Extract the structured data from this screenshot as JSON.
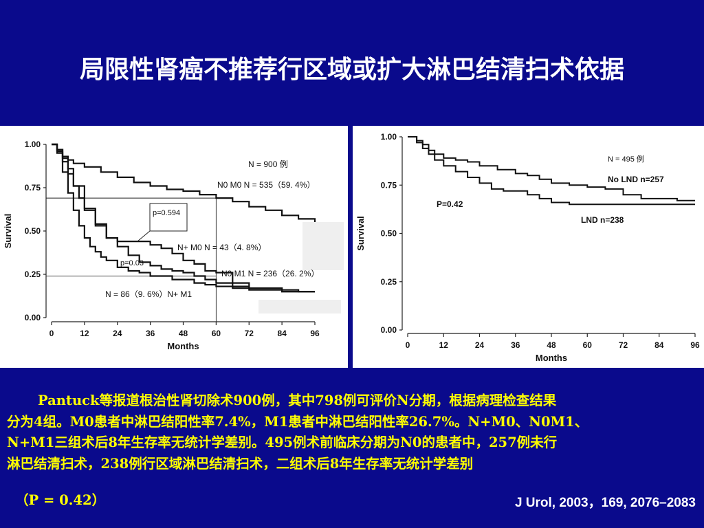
{
  "slide": {
    "title": "局限性肾癌不推荐行区域或扩大淋巴结清扫术依据",
    "paragraph_lines": [
      "Pantuck等报道根治性肾切除术900例，其中798例可评价N分期，根据病理检查结果",
      "分为4组。M0患者中淋巴结阳性率7.4%，M1患者中淋巴结阳性率26.7%。N+M0、N0M1、",
      "N+M1三组术后8年生存率无统计学差别。495例术前临床分期为N0的患者中，257例未行",
      "淋巴结清扫术，238例行区域淋巴结清扫术，二组术后8年生存率无统计学差别"
    ],
    "p_value_note": "（P = 0.42）",
    "citation": "J Urol, 2003，169, 2076–2083",
    "colors": {
      "background": "#0a0a8c",
      "title": "#ffffff",
      "paragraph": "#ffff00",
      "citation": "#ffffff"
    }
  },
  "chart_data": [
    {
      "type": "line",
      "title": "",
      "xlabel": "Months",
      "ylabel": "Survival",
      "xlim": [
        0,
        96
      ],
      "ylim": [
        0,
        1
      ],
      "xticks": [
        "0",
        "12",
        "24",
        "36",
        "48",
        "60",
        "72",
        "84",
        "96"
      ],
      "yticks": [
        "0.00",
        "0.25",
        "0.50",
        "0.75",
        "1.00"
      ],
      "annotations": [
        "N = 900 例",
        "N0 M0  N = 535（59. 4%）",
        "N+ M0 N = 43（4. 8%）",
        "N0 M1  N = 236（26. 2%）",
        "N = 86（9. 6%）N+ M1",
        "p=0.594",
        "p=0.03"
      ],
      "series": [
        {
          "id": "N0M0",
          "x": [
            0,
            2,
            4,
            6,
            8,
            12,
            18,
            24,
            30,
            36,
            42,
            48,
            54,
            60,
            66,
            72,
            78,
            84,
            90,
            96
          ],
          "y": [
            1.0,
            0.97,
            0.93,
            0.91,
            0.89,
            0.87,
            0.84,
            0.81,
            0.78,
            0.76,
            0.74,
            0.73,
            0.71,
            0.69,
            0.67,
            0.64,
            0.62,
            0.59,
            0.57,
            0.55
          ]
        },
        {
          "id": "NplusM0",
          "x": [
            0,
            2,
            4,
            6,
            8,
            12,
            16,
            20,
            24,
            28,
            32,
            36,
            40,
            44,
            48,
            52,
            56,
            60,
            66,
            72,
            78,
            84,
            90,
            96
          ],
          "y": [
            1.0,
            0.97,
            0.92,
            0.86,
            0.76,
            0.62,
            0.53,
            0.46,
            0.44,
            0.44,
            0.44,
            0.42,
            0.4,
            0.37,
            0.33,
            0.31,
            0.27,
            0.26,
            0.2,
            0.17,
            0.17,
            0.15,
            0.15,
            0.15
          ]
        },
        {
          "id": "N0M1",
          "x": [
            0,
            2,
            4,
            6,
            8,
            10,
            12,
            16,
            20,
            24,
            28,
            32,
            36,
            40,
            44,
            48,
            52,
            56,
            60,
            66,
            72,
            78,
            84,
            90,
            96
          ],
          "y": [
            1.0,
            0.96,
            0.9,
            0.83,
            0.76,
            0.69,
            0.63,
            0.54,
            0.46,
            0.41,
            0.36,
            0.32,
            0.3,
            0.28,
            0.27,
            0.26,
            0.24,
            0.22,
            0.2,
            0.18,
            0.17,
            0.17,
            0.16,
            0.15,
            0.15
          ]
        },
        {
          "id": "NplusM1",
          "x": [
            0,
            2,
            4,
            6,
            8,
            10,
            12,
            14,
            16,
            18,
            20,
            24,
            28,
            32,
            36,
            40,
            44,
            48,
            52,
            56,
            60,
            66,
            72,
            78,
            84,
            90,
            96
          ],
          "y": [
            1.0,
            0.95,
            0.84,
            0.72,
            0.62,
            0.53,
            0.46,
            0.41,
            0.38,
            0.35,
            0.33,
            0.29,
            0.27,
            0.26,
            0.24,
            0.24,
            0.22,
            0.22,
            0.2,
            0.19,
            0.18,
            0.17,
            0.16,
            0.16,
            0.15,
            0.15,
            0.15
          ]
        }
      ],
      "reference_lines": {
        "x": [
          60
        ],
        "y": [
          0.69,
          0.24
        ]
      }
    },
    {
      "type": "line",
      "title": "",
      "xlabel": "Months",
      "ylabel": "Survival",
      "xlim": [
        0,
        96
      ],
      "ylim": [
        0,
        1
      ],
      "xticks": [
        "0",
        "12",
        "24",
        "36",
        "48",
        "60",
        "72",
        "84",
        "96"
      ],
      "yticks": [
        "0.00",
        "0.25",
        "0.50",
        "0.75",
        "1.00"
      ],
      "annotations": [
        "N = 495 例",
        "No LND n=257",
        "P=0.42",
        "LND n=238"
      ],
      "series": [
        {
          "id": "NoLND",
          "x": [
            0,
            1,
            3,
            5,
            7,
            9,
            12,
            16,
            20,
            24,
            30,
            36,
            40,
            44,
            48,
            54,
            60,
            66,
            72,
            78,
            84,
            90,
            96
          ],
          "y": [
            1.0,
            1.0,
            0.98,
            0.96,
            0.93,
            0.91,
            0.89,
            0.88,
            0.87,
            0.85,
            0.83,
            0.81,
            0.8,
            0.78,
            0.76,
            0.75,
            0.74,
            0.73,
            0.7,
            0.68,
            0.68,
            0.67,
            0.67
          ]
        },
        {
          "id": "LND",
          "x": [
            0,
            1,
            3,
            5,
            7,
            9,
            12,
            16,
            20,
            24,
            28,
            32,
            36,
            40,
            44,
            48,
            54,
            60,
            66,
            72,
            78,
            84,
            90,
            96
          ],
          "y": [
            1.0,
            1.0,
            0.97,
            0.94,
            0.91,
            0.88,
            0.85,
            0.82,
            0.79,
            0.76,
            0.73,
            0.72,
            0.72,
            0.7,
            0.68,
            0.66,
            0.65,
            0.65,
            0.65,
            0.65,
            0.65,
            0.65,
            0.65,
            0.65
          ]
        }
      ]
    }
  ]
}
